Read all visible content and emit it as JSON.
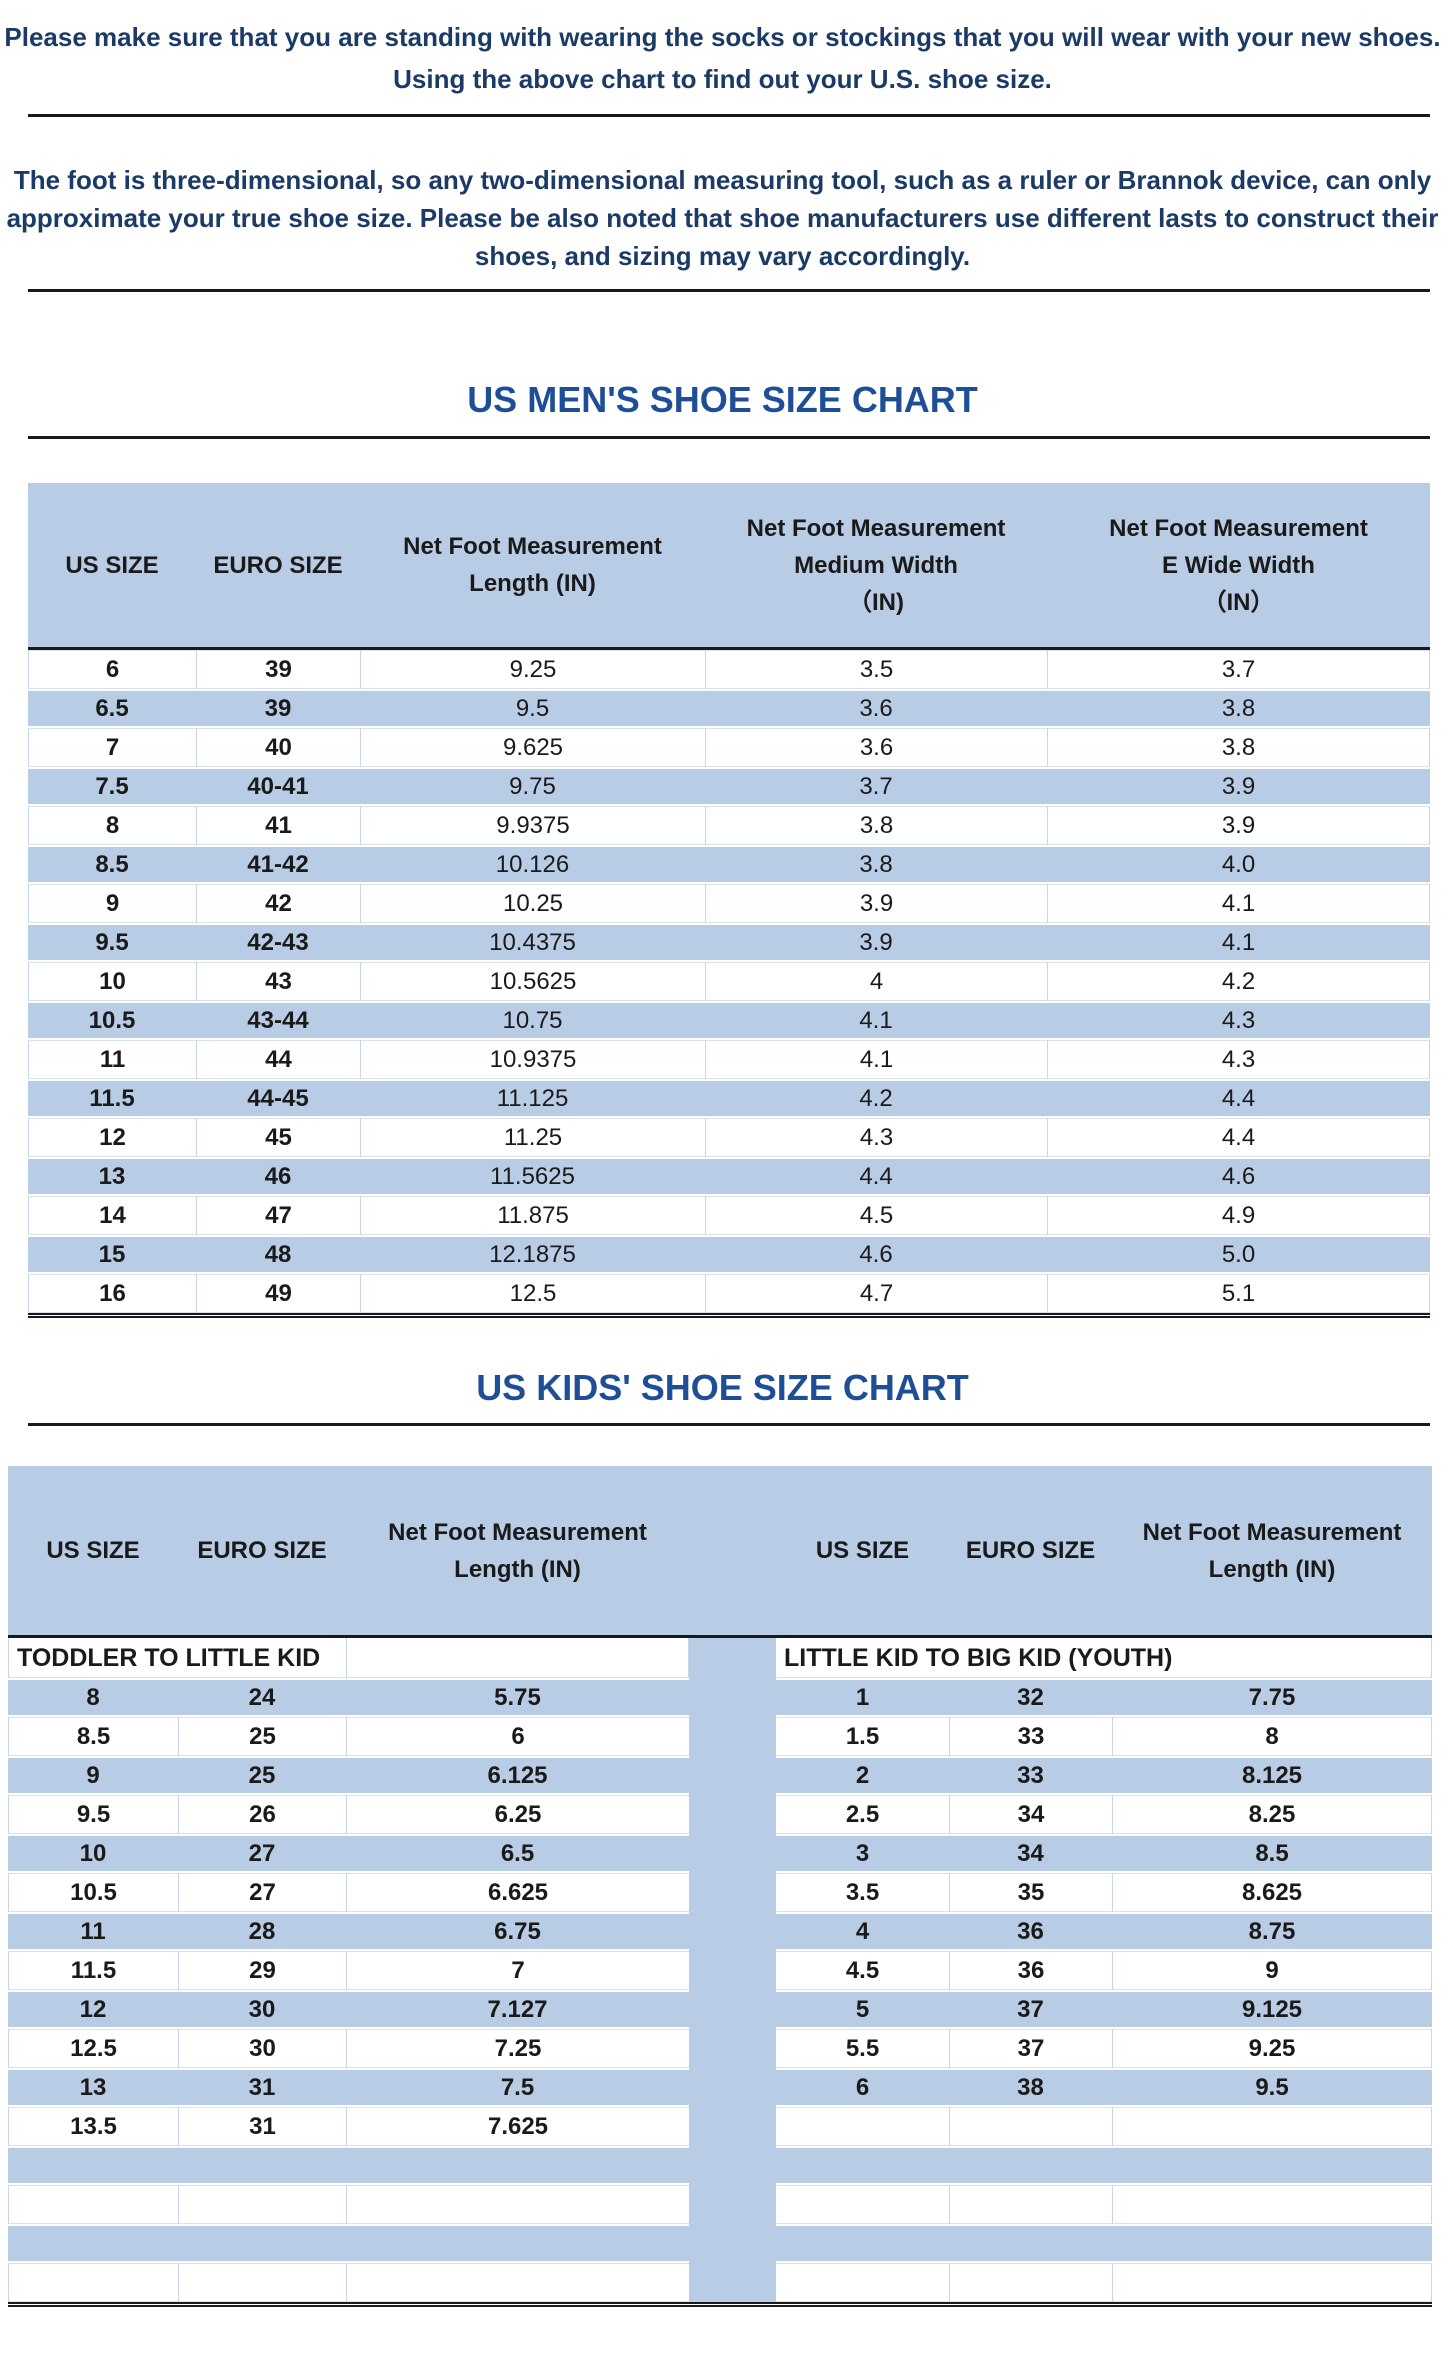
{
  "page": {
    "note1": "Please make sure that you are standing with wearing the socks or stockings that you will wear with your new shoes.\nUsing the above chart to find out your U.S. shoe size.",
    "note2": "The foot is three-dimensional, so any two-dimensional measuring tool, such as a ruler or Brannok device, can only\napproximate your true shoe size. Please be also noted that shoe manufacturers use different lasts to construct their\nshoes, and sizing may vary accordingly."
  },
  "colors": {
    "note_navy": "#1c3a66",
    "title_blue": "#1e4f96",
    "table_blue": "#b9cce5",
    "divider_blue": "#c7d5e8",
    "line_black": "#1a1a1a"
  },
  "mens_table": {
    "title": "US MEN'S SHOE SIZE CHART",
    "headers": [
      "US SIZE",
      "EURO SIZE",
      "Net Foot Measurement\nLength (IN)",
      "Net Foot Measurement\nMedium Width\n（IN)",
      "Net Foot Measurement\nE Wide Width\n（IN）"
    ],
    "rows": [
      [
        "6",
        "39",
        "9.25",
        "3.5",
        "3.7"
      ],
      [
        "6.5",
        "39",
        "9.5",
        "3.6",
        "3.8"
      ],
      [
        "7",
        "40",
        "9.625",
        "3.6",
        "3.8"
      ],
      [
        "7.5",
        "40-41",
        "9.75",
        "3.7",
        "3.9"
      ],
      [
        "8",
        "41",
        "9.9375",
        "3.8",
        "3.9"
      ],
      [
        "8.5",
        "41-42",
        "10.126",
        "3.8",
        "4.0"
      ],
      [
        "9",
        "42",
        "10.25",
        "3.9",
        "4.1"
      ],
      [
        "9.5",
        "42-43",
        "10.4375",
        "3.9",
        "4.1"
      ],
      [
        "10",
        "43",
        "10.5625",
        "4",
        "4.2"
      ],
      [
        "10.5",
        "43-44",
        "10.75",
        "4.1",
        "4.3"
      ],
      [
        "11",
        "44",
        "10.9375",
        "4.1",
        "4.3"
      ],
      [
        "11.5",
        "44-45",
        "11.125",
        "4.2",
        "4.4"
      ],
      [
        "12",
        "45",
        "11.25",
        "4.3",
        "4.4"
      ],
      [
        "13",
        "46",
        "11.5625",
        "4.4",
        "4.6"
      ],
      [
        "14",
        "47",
        "11.875",
        "4.5",
        "4.9"
      ],
      [
        "15",
        "48",
        "12.1875",
        "4.6",
        "5.0"
      ],
      [
        "16",
        "49",
        "12.5",
        "4.7",
        "5.1"
      ]
    ]
  },
  "kids_table": {
    "title": "US KIDS' SHOE SIZE CHART",
    "headers": [
      "US SIZE",
      "EURO SIZE",
      "Net Foot Measurement\nLength (IN)",
      "US SIZE",
      "EURO SIZE",
      "Net Foot Measurement\nLength (IN)"
    ],
    "section_left": "TODDLER TO LITTLE KID",
    "section_right": "LITTLE KID TO BIG KID (YOUTH)",
    "rows": [
      [
        "8",
        "24",
        "5.75",
        "1",
        "32",
        "7.75"
      ],
      [
        "8.5",
        "25",
        "6",
        "1.5",
        "33",
        "8"
      ],
      [
        "9",
        "25",
        "6.125",
        "2",
        "33",
        "8.125"
      ],
      [
        "9.5",
        "26",
        "6.25",
        "2.5",
        "34",
        "8.25"
      ],
      [
        "10",
        "27",
        "6.5",
        "3",
        "34",
        "8.5"
      ],
      [
        "10.5",
        "27",
        "6.625",
        "3.5",
        "35",
        "8.625"
      ],
      [
        "11",
        "28",
        "6.75",
        "4",
        "36",
        "8.75"
      ],
      [
        "11.5",
        "29",
        "7",
        "4.5",
        "36",
        "9"
      ],
      [
        "12",
        "30",
        "7.127",
        "5",
        "37",
        "9.125"
      ],
      [
        "12.5",
        "30",
        "7.25",
        "5.5",
        "37",
        "9.25"
      ],
      [
        "13",
        "31",
        "7.5",
        "6",
        "38",
        "9.5"
      ],
      [
        "13.5",
        "31",
        "7.625",
        "",
        "",
        ""
      ],
      [
        "",
        "",
        "",
        "",
        "",
        ""
      ],
      [
        "",
        "",
        "",
        "",
        "",
        ""
      ],
      [
        "",
        "",
        "",
        "",
        "",
        ""
      ],
      [
        "",
        "",
        "",
        "",
        "",
        ""
      ]
    ]
  }
}
